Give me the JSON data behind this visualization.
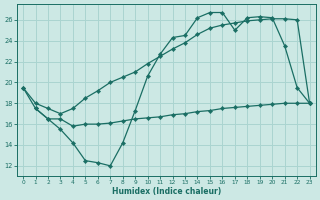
{
  "xlabel": "Humidex (Indice chaleur)",
  "bg_color": "#cce8e4",
  "grid_color": "#aad4d0",
  "line_color": "#1a6e64",
  "xlim": [
    -0.5,
    23.5
  ],
  "ylim": [
    11,
    27.5
  ],
  "yticks": [
    12,
    14,
    16,
    18,
    20,
    22,
    24,
    26
  ],
  "xticks": [
    0,
    1,
    2,
    3,
    4,
    5,
    6,
    7,
    8,
    9,
    10,
    11,
    12,
    13,
    14,
    15,
    16,
    17,
    18,
    19,
    20,
    21,
    22,
    23
  ],
  "line1_x": [
    0,
    1,
    2,
    3,
    4,
    5,
    6,
    7,
    8,
    9,
    10,
    11,
    12,
    13,
    14,
    15,
    16,
    17,
    18,
    19,
    20,
    21,
    22,
    23
  ],
  "line1_y": [
    19.5,
    17.5,
    16.5,
    15.5,
    14.2,
    12.5,
    12.3,
    12.0,
    14.2,
    17.3,
    20.6,
    22.7,
    24.3,
    24.5,
    26.2,
    26.7,
    26.7,
    25.0,
    26.2,
    26.3,
    26.2,
    23.5,
    19.5,
    18.0
  ],
  "line2_x": [
    0,
    1,
    2,
    3,
    4,
    5,
    6,
    7,
    8,
    9,
    10,
    11,
    12,
    13,
    14,
    15,
    16,
    17,
    18,
    19,
    20,
    21,
    22,
    23
  ],
  "line2_y": [
    19.5,
    18.0,
    17.5,
    17.0,
    17.5,
    18.5,
    19.2,
    20.0,
    20.5,
    21.0,
    21.8,
    22.5,
    23.2,
    23.8,
    24.6,
    25.2,
    25.5,
    25.7,
    25.9,
    26.0,
    26.1,
    26.1,
    26.0,
    18.0
  ],
  "line3_x": [
    1,
    2,
    3,
    4,
    5,
    6,
    7,
    8,
    9,
    10,
    11,
    12,
    13,
    14,
    15,
    16,
    17,
    18,
    19,
    20,
    21,
    22,
    23
  ],
  "line3_y": [
    17.5,
    16.5,
    16.5,
    15.8,
    16.0,
    16.0,
    16.1,
    16.3,
    16.5,
    16.6,
    16.7,
    16.9,
    17.0,
    17.2,
    17.3,
    17.5,
    17.6,
    17.7,
    17.8,
    17.9,
    18.0,
    18.0,
    18.0
  ]
}
